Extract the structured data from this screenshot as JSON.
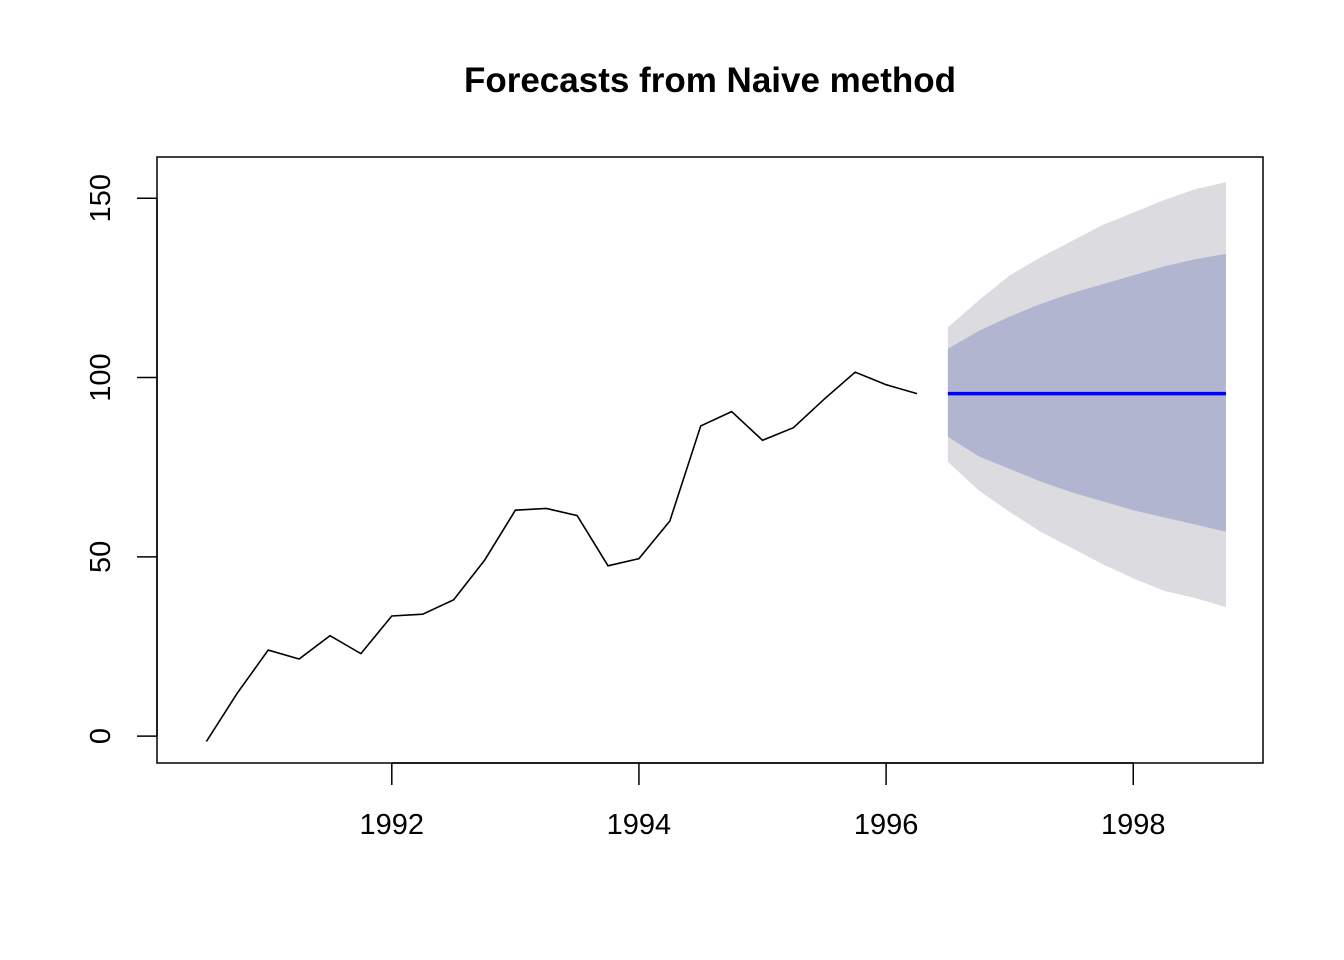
{
  "chart_data": {
    "type": "line",
    "title": "Forecasts from Naive method",
    "xlabel": "",
    "ylabel": "",
    "xlim": [
      1990.1,
      1999.05
    ],
    "ylim": [
      -7.5,
      161.5
    ],
    "x_ticks": [
      1992,
      1994,
      1996,
      1998
    ],
    "y_ticks": [
      0,
      50,
      100,
      150
    ],
    "grid": false,
    "legend": "none",
    "colors": {
      "history": "#000000",
      "forecast": "#0000ff",
      "band_80": "#b1b5cf",
      "band_95": "#dbdbe0"
    },
    "history": {
      "x": [
        1990.5,
        1990.75,
        1991.0,
        1991.25,
        1991.5,
        1991.75,
        1992.0,
        1992.25,
        1992.5,
        1992.75,
        1993.0,
        1993.25,
        1993.5,
        1993.75,
        1994.0,
        1994.25,
        1994.5,
        1994.75,
        1995.0,
        1995.25,
        1995.5,
        1995.75,
        1996.0,
        1996.25
      ],
      "y": [
        -1.5,
        12,
        24,
        21.5,
        28,
        23,
        33.5,
        34,
        38,
        49,
        63,
        63.5,
        61.5,
        47.5,
        49.5,
        60,
        86.5,
        90.5,
        82.5,
        86,
        94,
        101.5,
        98,
        95.5
      ]
    },
    "forecast": {
      "x": [
        1996.5,
        1996.75,
        1997.0,
        1997.25,
        1997.5,
        1997.75,
        1998.0,
        1998.25,
        1998.5,
        1998.75
      ],
      "mean": [
        95.5,
        95.5,
        95.5,
        95.5,
        95.5,
        95.5,
        95.5,
        95.5,
        95.5,
        95.5
      ],
      "lo80": [
        83.5,
        78,
        74.5,
        71,
        68,
        65.5,
        63,
        61,
        59,
        57
      ],
      "hi80": [
        108,
        113,
        117,
        120.5,
        123.5,
        126,
        128.5,
        131,
        133,
        134.5
      ],
      "lo95": [
        76.5,
        68.5,
        62.5,
        57,
        52.5,
        48,
        44,
        40.5,
        38.5,
        36
      ],
      "hi95": [
        114,
        121.5,
        128.5,
        133.5,
        138,
        142.5,
        146,
        149.5,
        152.5,
        154.5
      ]
    }
  }
}
